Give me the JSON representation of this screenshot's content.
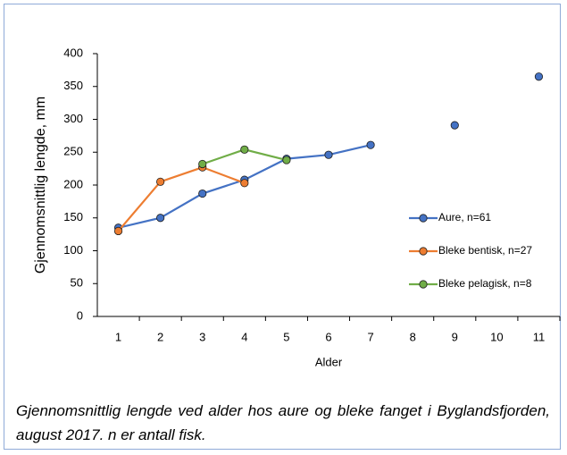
{
  "chart_data": {
    "type": "line",
    "ylabel": "Gjennomsnittlig lengde, mm",
    "xlabel": "Alder",
    "categories": [
      "1",
      "2",
      "3",
      "4",
      "5",
      "6",
      "7",
      "8",
      "9",
      "10",
      "11"
    ],
    "series": [
      {
        "name": "Aure, n=61",
        "color": "#4472c4",
        "values": [
          135,
          150,
          187,
          208,
          240,
          246,
          261,
          null,
          291,
          null,
          365
        ]
      },
      {
        "name": "Bleke bentisk, n=27",
        "color": "#ed7d31",
        "values": [
          130,
          205,
          227,
          203,
          null,
          null,
          null,
          null,
          null,
          null,
          null
        ]
      },
      {
        "name": "Bleke pelagisk, n=8",
        "color": "#70ad47",
        "values": [
          null,
          null,
          232,
          254,
          238,
          null,
          null,
          null,
          null,
          null,
          null
        ]
      }
    ],
    "ylim": [
      0,
      400
    ],
    "yticks": [
      0,
      50,
      100,
      150,
      200,
      250,
      300,
      350,
      400
    ],
    "grid": false,
    "legend": "right"
  },
  "caption": "Gjennomsnittlig lengde ved alder hos aure og bleke fanget i Byglandsfjorden, august 2017. n er antall fisk."
}
